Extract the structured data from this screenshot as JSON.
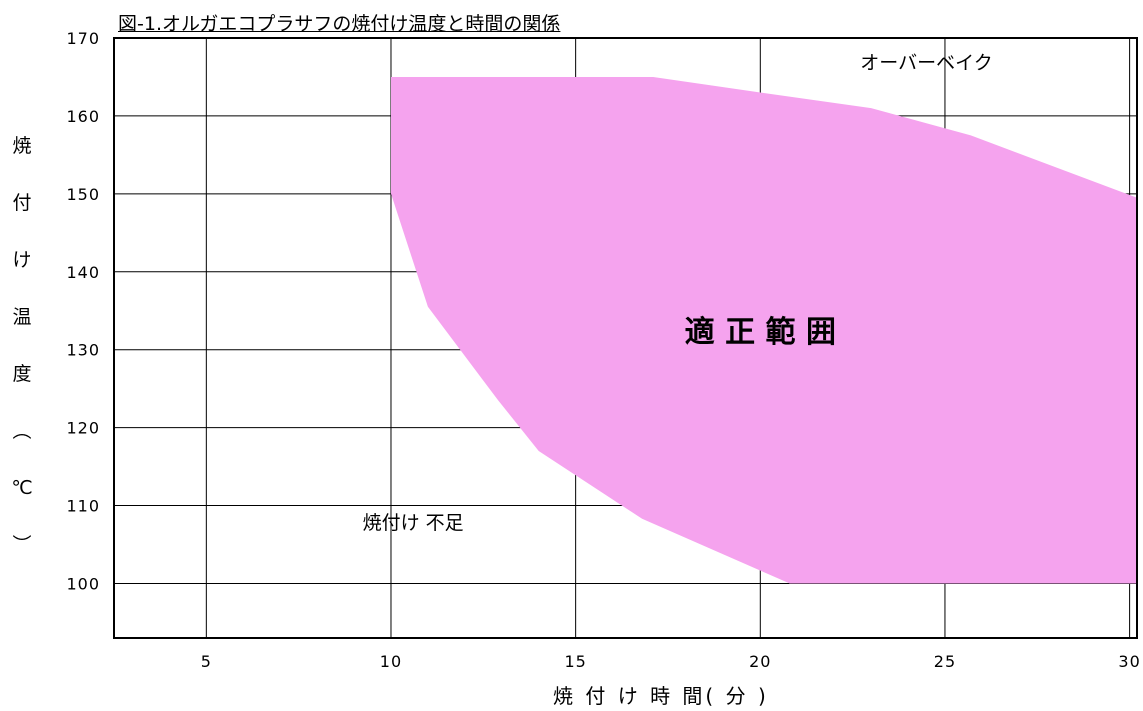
{
  "chart_data": {
    "type": "area",
    "title": "図-1.オルガエコプラサフの焼付け温度と時間の関係",
    "xlabel": "焼 付 け 時 間( 分 )",
    "ylabel": "焼付け温度(℃)",
    "ylabel_chars": [
      "焼",
      "付",
      "け",
      "温",
      "度",
      "︵",
      "℃",
      "︶"
    ],
    "xlim": [
      2.5,
      30.2
    ],
    "ylim": [
      93,
      170
    ],
    "x_ticks": [
      5,
      10,
      15,
      20,
      25,
      30
    ],
    "y_ticks": [
      100,
      110,
      120,
      130,
      140,
      150,
      160,
      170
    ],
    "grid": true,
    "fill_color": "#f5a3ee",
    "region": {
      "name": "適 正 範 囲",
      "points": [
        {
          "x": 10.0,
          "y": 165.0
        },
        {
          "x": 17.1,
          "y": 165.0
        },
        {
          "x": 20.0,
          "y": 163.0
        },
        {
          "x": 23.0,
          "y": 161.0
        },
        {
          "x": 25.7,
          "y": 157.5
        },
        {
          "x": 30.2,
          "y": 149.5
        },
        {
          "x": 30.2,
          "y": 100.0
        },
        {
          "x": 20.8,
          "y": 100.0
        },
        {
          "x": 16.8,
          "y": 108.3
        },
        {
          "x": 14.0,
          "y": 117.0
        },
        {
          "x": 12.9,
          "y": 123.5
        },
        {
          "x": 11.0,
          "y": 135.5
        },
        {
          "x": 10.0,
          "y": 150.0
        }
      ]
    },
    "annotations": [
      {
        "text": "オーバーベイク",
        "x": 24.5,
        "y": 166
      },
      {
        "text": "適 正 範 囲",
        "x": 20.0,
        "y": 131
      },
      {
        "text": "焼付け 不足",
        "x": 10.6,
        "y": 107
      }
    ]
  }
}
